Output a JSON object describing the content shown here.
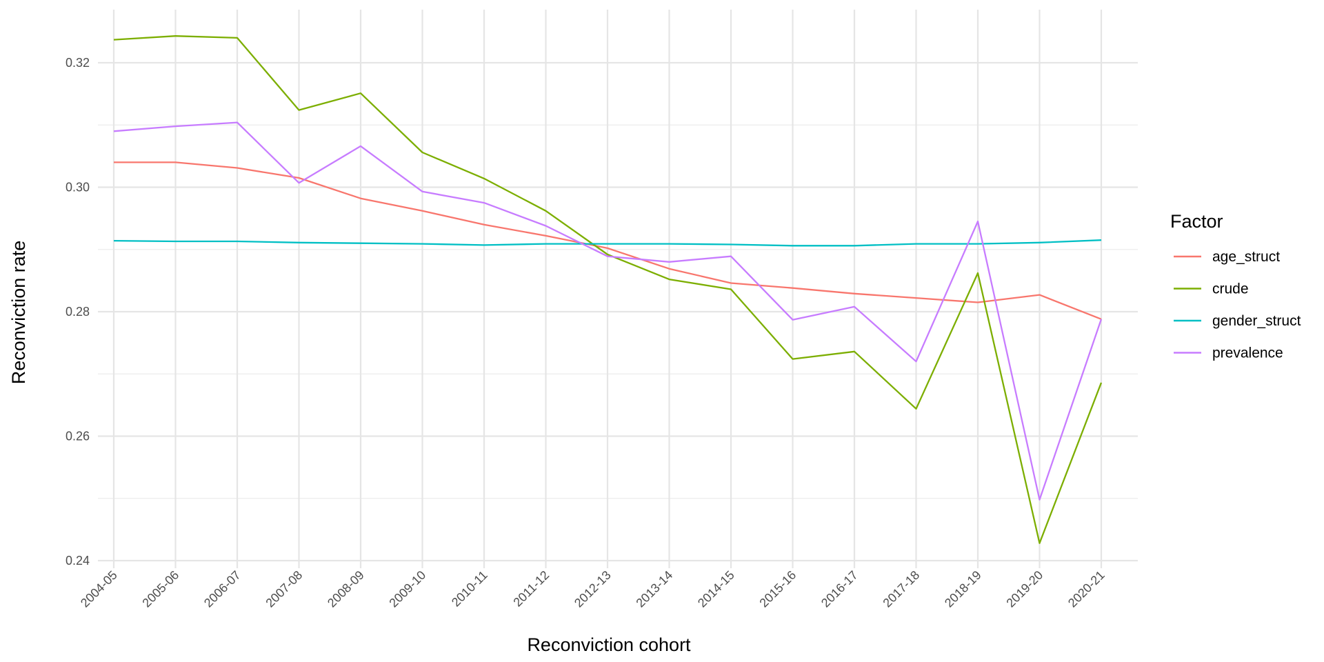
{
  "chart_data": {
    "type": "line",
    "title": "",
    "xlabel": "Reconviction cohort",
    "ylabel": "Reconviction rate",
    "ylim": [
      0.24,
      0.3285
    ],
    "yticks": [
      0.24,
      0.26,
      0.28,
      0.3,
      0.32
    ],
    "ytick_labels": [
      "0.24",
      "0.26",
      "0.28",
      "0.30",
      "0.32"
    ],
    "grid": true,
    "legend": {
      "title": "Factor",
      "position": "right"
    },
    "categories": [
      "2004-05",
      "2005-06",
      "2006-07",
      "2007-08",
      "2008-09",
      "2009-10",
      "2010-11",
      "2011-12",
      "2012-13",
      "2013-14",
      "2014-15",
      "2015-16",
      "2016-17",
      "2017-18",
      "2018-19",
      "2019-20",
      "2020-21"
    ],
    "series": [
      {
        "name": "age_struct",
        "color": "#F8766D",
        "values": [
          0.304,
          0.304,
          0.3031,
          0.3015,
          0.2982,
          0.2962,
          0.294,
          0.2922,
          0.2902,
          0.2869,
          0.2846,
          0.2838,
          0.2829,
          0.2822,
          0.2815,
          0.2827,
          0.2788
        ]
      },
      {
        "name": "crude",
        "color": "#7CAE00",
        "values": [
          0.3237,
          0.3243,
          0.324,
          0.3124,
          0.3151,
          0.3056,
          0.3014,
          0.2962,
          0.2892,
          0.2852,
          0.2836,
          0.2724,
          0.2736,
          0.2644,
          0.2862,
          0.2428,
          0.2686
        ]
      },
      {
        "name": "gender_struct",
        "color": "#00BFC4",
        "values": [
          0.2914,
          0.2913,
          0.2913,
          0.2911,
          0.291,
          0.2909,
          0.2907,
          0.2909,
          0.2909,
          0.2909,
          0.2908,
          0.2906,
          0.2906,
          0.2909,
          0.2909,
          0.2911,
          0.2915
        ]
      },
      {
        "name": "prevalence",
        "color": "#C77CFF",
        "values": [
          0.309,
          0.3098,
          0.3104,
          0.3007,
          0.3066,
          0.2993,
          0.2975,
          0.2938,
          0.2889,
          0.288,
          0.2889,
          0.2787,
          0.2808,
          0.272,
          0.2945,
          0.2498,
          0.2788
        ]
      }
    ]
  }
}
